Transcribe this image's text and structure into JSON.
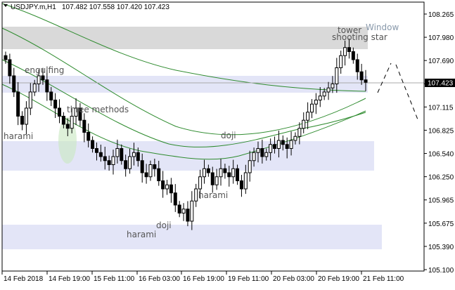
{
  "header": {
    "symbol": "USDJPY.m,H1",
    "ohlc": "107.482 107.558 107.420 107.423"
  },
  "colors": {
    "zone_blue": "#e3e5f7",
    "zone_gray": "#d9d9d9",
    "ma_green": "#2e8b2e",
    "candle": "#000000",
    "grid_line": "#808080"
  },
  "price_axis": {
    "ticks": [
      "108.265",
      "107.980",
      "107.690",
      "107.405",
      "107.115",
      "106.825",
      "106.540",
      "106.250",
      "105.965",
      "105.675",
      "105.390",
      "105.100"
    ],
    "current_price": "107.423"
  },
  "time_axis": {
    "ticks": [
      "14 Feb 2018",
      "14 Feb 19:00",
      "15 Feb 11:00",
      "16 Feb 03:00",
      "16 Feb 19:00",
      "19 Feb 11:00",
      "20 Feb 03:00",
      "20 Feb 19:00",
      "21 Feb 11:00"
    ]
  },
  "annotations": {
    "engulfing": "engulfing",
    "three_methods": "three methods",
    "harami_left": "harami",
    "doji_mid": "doji",
    "harami_mid": "harami",
    "doji_bottom": "doji",
    "harami_bottom": "harami",
    "tower": "tower",
    "shooting_star": "shooting star",
    "window": "Window"
  },
  "chart_data": {
    "type": "candlestick",
    "symbol": "USDJPY.m",
    "timeframe": "H1",
    "y_range": [
      105.1,
      108.265
    ],
    "candles_close_approx": [
      107.7,
      107.5,
      107.3,
      107.0,
      106.9,
      107.1,
      107.3,
      107.4,
      107.5,
      107.45,
      107.3,
      107.2,
      107.1,
      107.0,
      106.9,
      106.85,
      107.0,
      107.1,
      106.95,
      106.8,
      106.7,
      106.6,
      106.55,
      106.5,
      106.45,
      106.4,
      106.5,
      106.6,
      106.45,
      106.35,
      106.5,
      106.55,
      106.45,
      106.3,
      106.25,
      106.4,
      106.35,
      106.2,
      106.1,
      106.15,
      106.05,
      105.9,
      105.8,
      105.85,
      105.7,
      105.95,
      106.1,
      106.25,
      106.35,
      106.3,
      106.15,
      106.25,
      106.35,
      106.3,
      106.25,
      106.35,
      106.2,
      106.1,
      106.3,
      106.45,
      106.55,
      106.6,
      106.5,
      106.55,
      106.65,
      106.6,
      106.7,
      106.65,
      106.6,
      106.7,
      106.75,
      106.85,
      106.95,
      107.05,
      107.15,
      107.2,
      107.25,
      107.3,
      107.35,
      107.4,
      107.6,
      107.75,
      107.85,
      107.8,
      107.7,
      107.55,
      107.45,
      107.42
    ]
  }
}
